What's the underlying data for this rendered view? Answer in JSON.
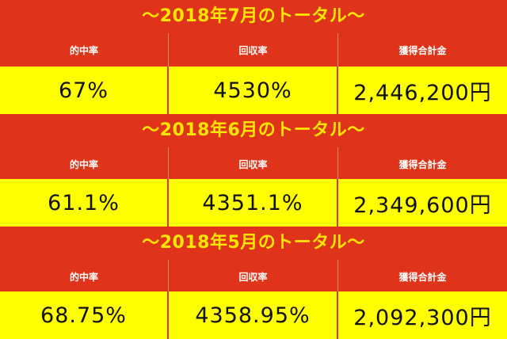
{
  "colors": {
    "title_bg": "#e0341a",
    "title_text": "#ffe600",
    "header_bg": "#e0341a",
    "header_text": "#ffffff",
    "value_bg": "#ffff00",
    "value_text": "#111111"
  },
  "sections": [
    {
      "title": "〜2018年7月のトータル〜",
      "headers": [
        "的中率",
        "回収率",
        "獲得合計金"
      ],
      "values": [
        "67%",
        "4530%",
        "2,446,200円"
      ]
    },
    {
      "title": "〜2018年6月のトータル〜",
      "headers": [
        "的中率",
        "回収率",
        "獲得合計金"
      ],
      "values": [
        "61.1%",
        "4351.1%",
        "2,349,600円"
      ]
    },
    {
      "title": "〜2018年5月のトータル〜",
      "headers": [
        "的中率",
        "回収率",
        "獲得合計金"
      ],
      "values": [
        "68.75%",
        "4358.95%",
        "2,092,300円"
      ]
    }
  ]
}
